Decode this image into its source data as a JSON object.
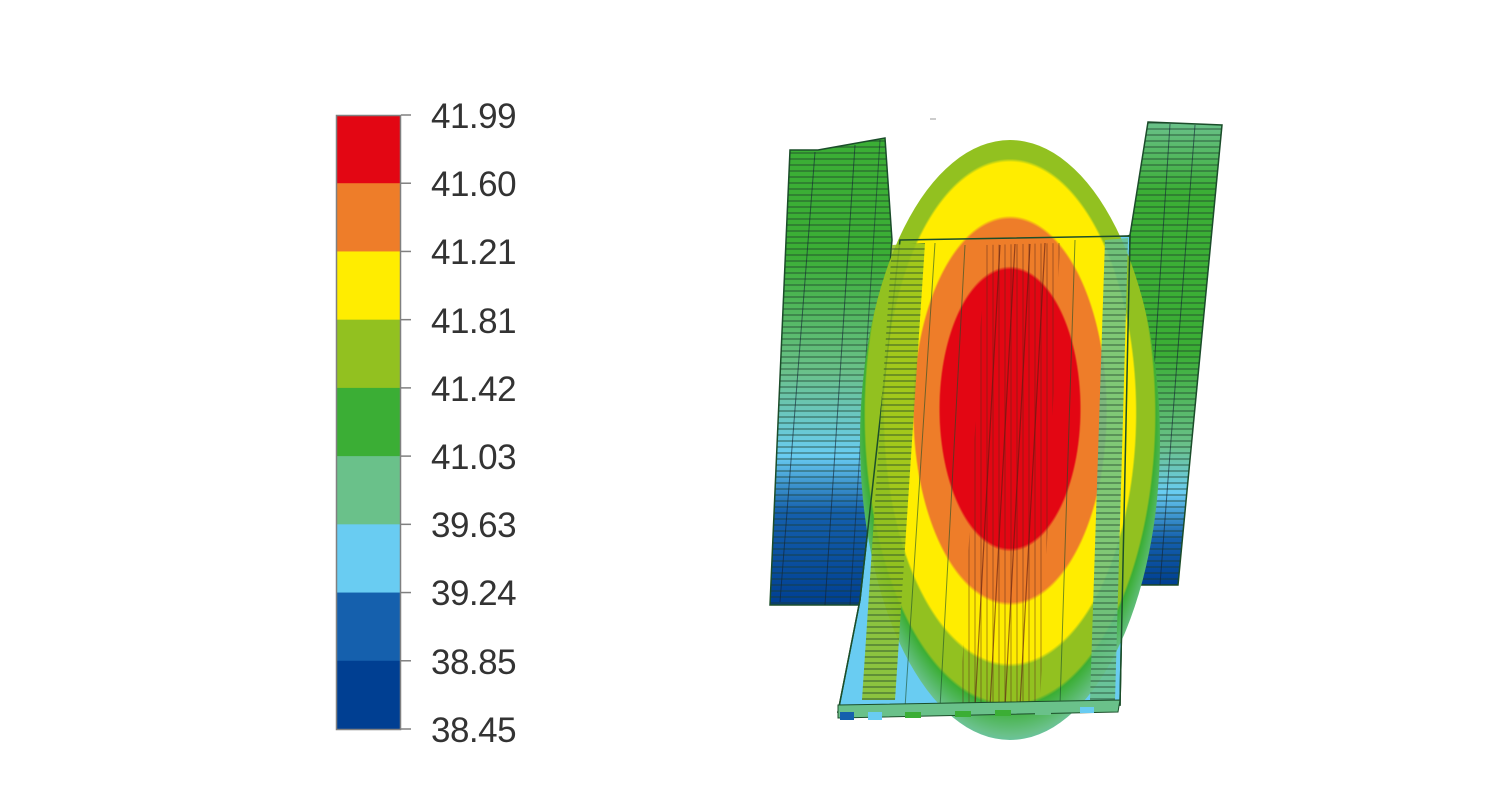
{
  "legend": {
    "labels": [
      "41.99",
      "41.60",
      "41.21",
      "41.81",
      "41.42",
      "41.03",
      "39.63",
      "39.24",
      "38.85",
      "38.45"
    ],
    "colors": [
      "#e30613",
      "#ee7d29",
      "#ffed00",
      "#92c120",
      "#3bae35",
      "#6ac18a",
      "#69ccf2",
      "#1560ad",
      "#003f92"
    ]
  },
  "model": {
    "description_icon": "temperature-contour-heatsink"
  }
}
